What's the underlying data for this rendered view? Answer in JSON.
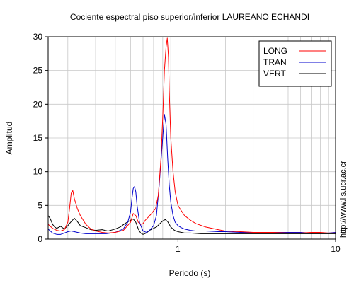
{
  "chart_data": {
    "type": "line",
    "title": "Cociente espectral piso superior/inferior LAUREANO ECHANDI",
    "xlabel": "Periodo (s)",
    "ylabel": "Amplitud",
    "x_scale": "log",
    "xlim": [
      0.15,
      10
    ],
    "ylim": [
      0,
      30
    ],
    "x_ticks": [
      {
        "value": 1,
        "label": "1"
      },
      {
        "value": 10,
        "label": "10"
      }
    ],
    "y_ticks": [
      {
        "value": 0,
        "label": "0"
      },
      {
        "value": 5,
        "label": "5"
      },
      {
        "value": 10,
        "label": "10"
      },
      {
        "value": 15,
        "label": "15"
      },
      {
        "value": 20,
        "label": "20"
      },
      {
        "value": 25,
        "label": "25"
      },
      {
        "value": 30,
        "label": "30"
      }
    ],
    "grid": true,
    "legend_position": "top-right",
    "watermark": "http://www.lis.ucr.ac.cr",
    "series": [
      {
        "name": "LONG",
        "color": "#ff0000",
        "x": [
          0.15,
          0.16,
          0.17,
          0.18,
          0.19,
          0.2,
          0.205,
          0.21,
          0.215,
          0.22,
          0.23,
          0.24,
          0.26,
          0.28,
          0.3,
          0.33,
          0.36,
          0.4,
          0.45,
          0.5,
          0.52,
          0.54,
          0.56,
          0.58,
          0.6,
          0.62,
          0.65,
          0.68,
          0.7,
          0.72,
          0.75,
          0.78,
          0.8,
          0.82,
          0.84,
          0.855,
          0.87,
          0.88,
          0.9,
          0.93,
          0.96,
          1.0,
          1.05,
          1.1,
          1.2,
          1.3,
          1.5,
          1.8,
          2.0,
          2.5,
          3.0,
          4.0,
          5.0,
          6.0,
          7.0,
          8.0,
          9.0,
          10.0
        ],
        "y": [
          2.2,
          1.6,
          1.3,
          1.2,
          1.4,
          2.5,
          4.5,
          6.8,
          7.2,
          6.0,
          4.5,
          3.5,
          2.2,
          1.5,
          1.2,
          1.0,
          0.9,
          1.0,
          1.3,
          2.5,
          3.8,
          3.5,
          2.5,
          2.2,
          2.3,
          2.8,
          3.3,
          3.8,
          4.2,
          4.5,
          6.5,
          12.0,
          18.0,
          25.0,
          28.5,
          29.8,
          27.0,
          22.0,
          15.0,
          10.0,
          7.0,
          5.0,
          4.2,
          3.5,
          2.8,
          2.3,
          1.8,
          1.4,
          1.2,
          1.1,
          1.0,
          1.0,
          0.9,
          0.9,
          1.0,
          1.0,
          0.9,
          0.9
        ]
      },
      {
        "name": "TRAN",
        "color": "#0000cc",
        "x": [
          0.15,
          0.16,
          0.17,
          0.18,
          0.19,
          0.2,
          0.21,
          0.22,
          0.24,
          0.26,
          0.3,
          0.35,
          0.4,
          0.45,
          0.48,
          0.5,
          0.51,
          0.52,
          0.53,
          0.54,
          0.55,
          0.57,
          0.6,
          0.63,
          0.66,
          0.7,
          0.73,
          0.76,
          0.8,
          0.82,
          0.84,
          0.86,
          0.88,
          0.9,
          0.93,
          0.96,
          1.0,
          1.05,
          1.1,
          1.2,
          1.3,
          1.5,
          1.8,
          2.0,
          2.5,
          3.0,
          4.0,
          5.0,
          6.0,
          7.0,
          8.0,
          9.0,
          10.0
        ],
        "y": [
          1.5,
          0.9,
          0.7,
          0.7,
          0.9,
          1.1,
          1.2,
          1.1,
          0.9,
          0.8,
          0.8,
          0.8,
          1.0,
          1.5,
          2.5,
          4.0,
          6.0,
          7.5,
          7.8,
          7.0,
          5.0,
          2.5,
          1.2,
          1.0,
          1.3,
          2.0,
          3.5,
          8.0,
          15.0,
          18.5,
          17.0,
          12.0,
          8.0,
          5.5,
          3.5,
          2.5,
          2.0,
          1.7,
          1.5,
          1.3,
          1.2,
          1.2,
          1.1,
          1.1,
          1.0,
          1.0,
          1.0,
          1.0,
          1.0,
          0.9,
          0.9,
          0.9,
          1.0
        ]
      },
      {
        "name": "VERT",
        "color": "#000000",
        "x": [
          0.15,
          0.155,
          0.16,
          0.165,
          0.17,
          0.18,
          0.19,
          0.2,
          0.21,
          0.22,
          0.23,
          0.24,
          0.26,
          0.28,
          0.3,
          0.33,
          0.36,
          0.4,
          0.43,
          0.46,
          0.5,
          0.52,
          0.54,
          0.56,
          0.58,
          0.6,
          0.63,
          0.66,
          0.7,
          0.73,
          0.76,
          0.8,
          0.83,
          0.86,
          0.9,
          0.95,
          1.0,
          1.1,
          1.2,
          1.4,
          1.6,
          2.0,
          2.5,
          3.0,
          4.0,
          5.0,
          6.0,
          7.0,
          8.0,
          9.0,
          10.0
        ],
        "y": [
          3.5,
          3.0,
          2.2,
          1.8,
          1.6,
          1.9,
          1.5,
          2.0,
          2.6,
          3.1,
          2.6,
          2.0,
          1.7,
          1.4,
          1.3,
          1.4,
          1.2,
          1.5,
          1.8,
          2.3,
          2.8,
          3.0,
          2.5,
          1.5,
          0.9,
          0.7,
          0.9,
          1.3,
          1.6,
          1.8,
          2.2,
          2.7,
          2.9,
          2.6,
          1.8,
          1.3,
          1.1,
          0.9,
          0.9,
          0.8,
          0.8,
          0.8,
          0.8,
          0.8,
          0.8,
          0.8,
          0.8,
          0.8,
          0.8,
          0.8,
          0.8
        ]
      }
    ]
  }
}
